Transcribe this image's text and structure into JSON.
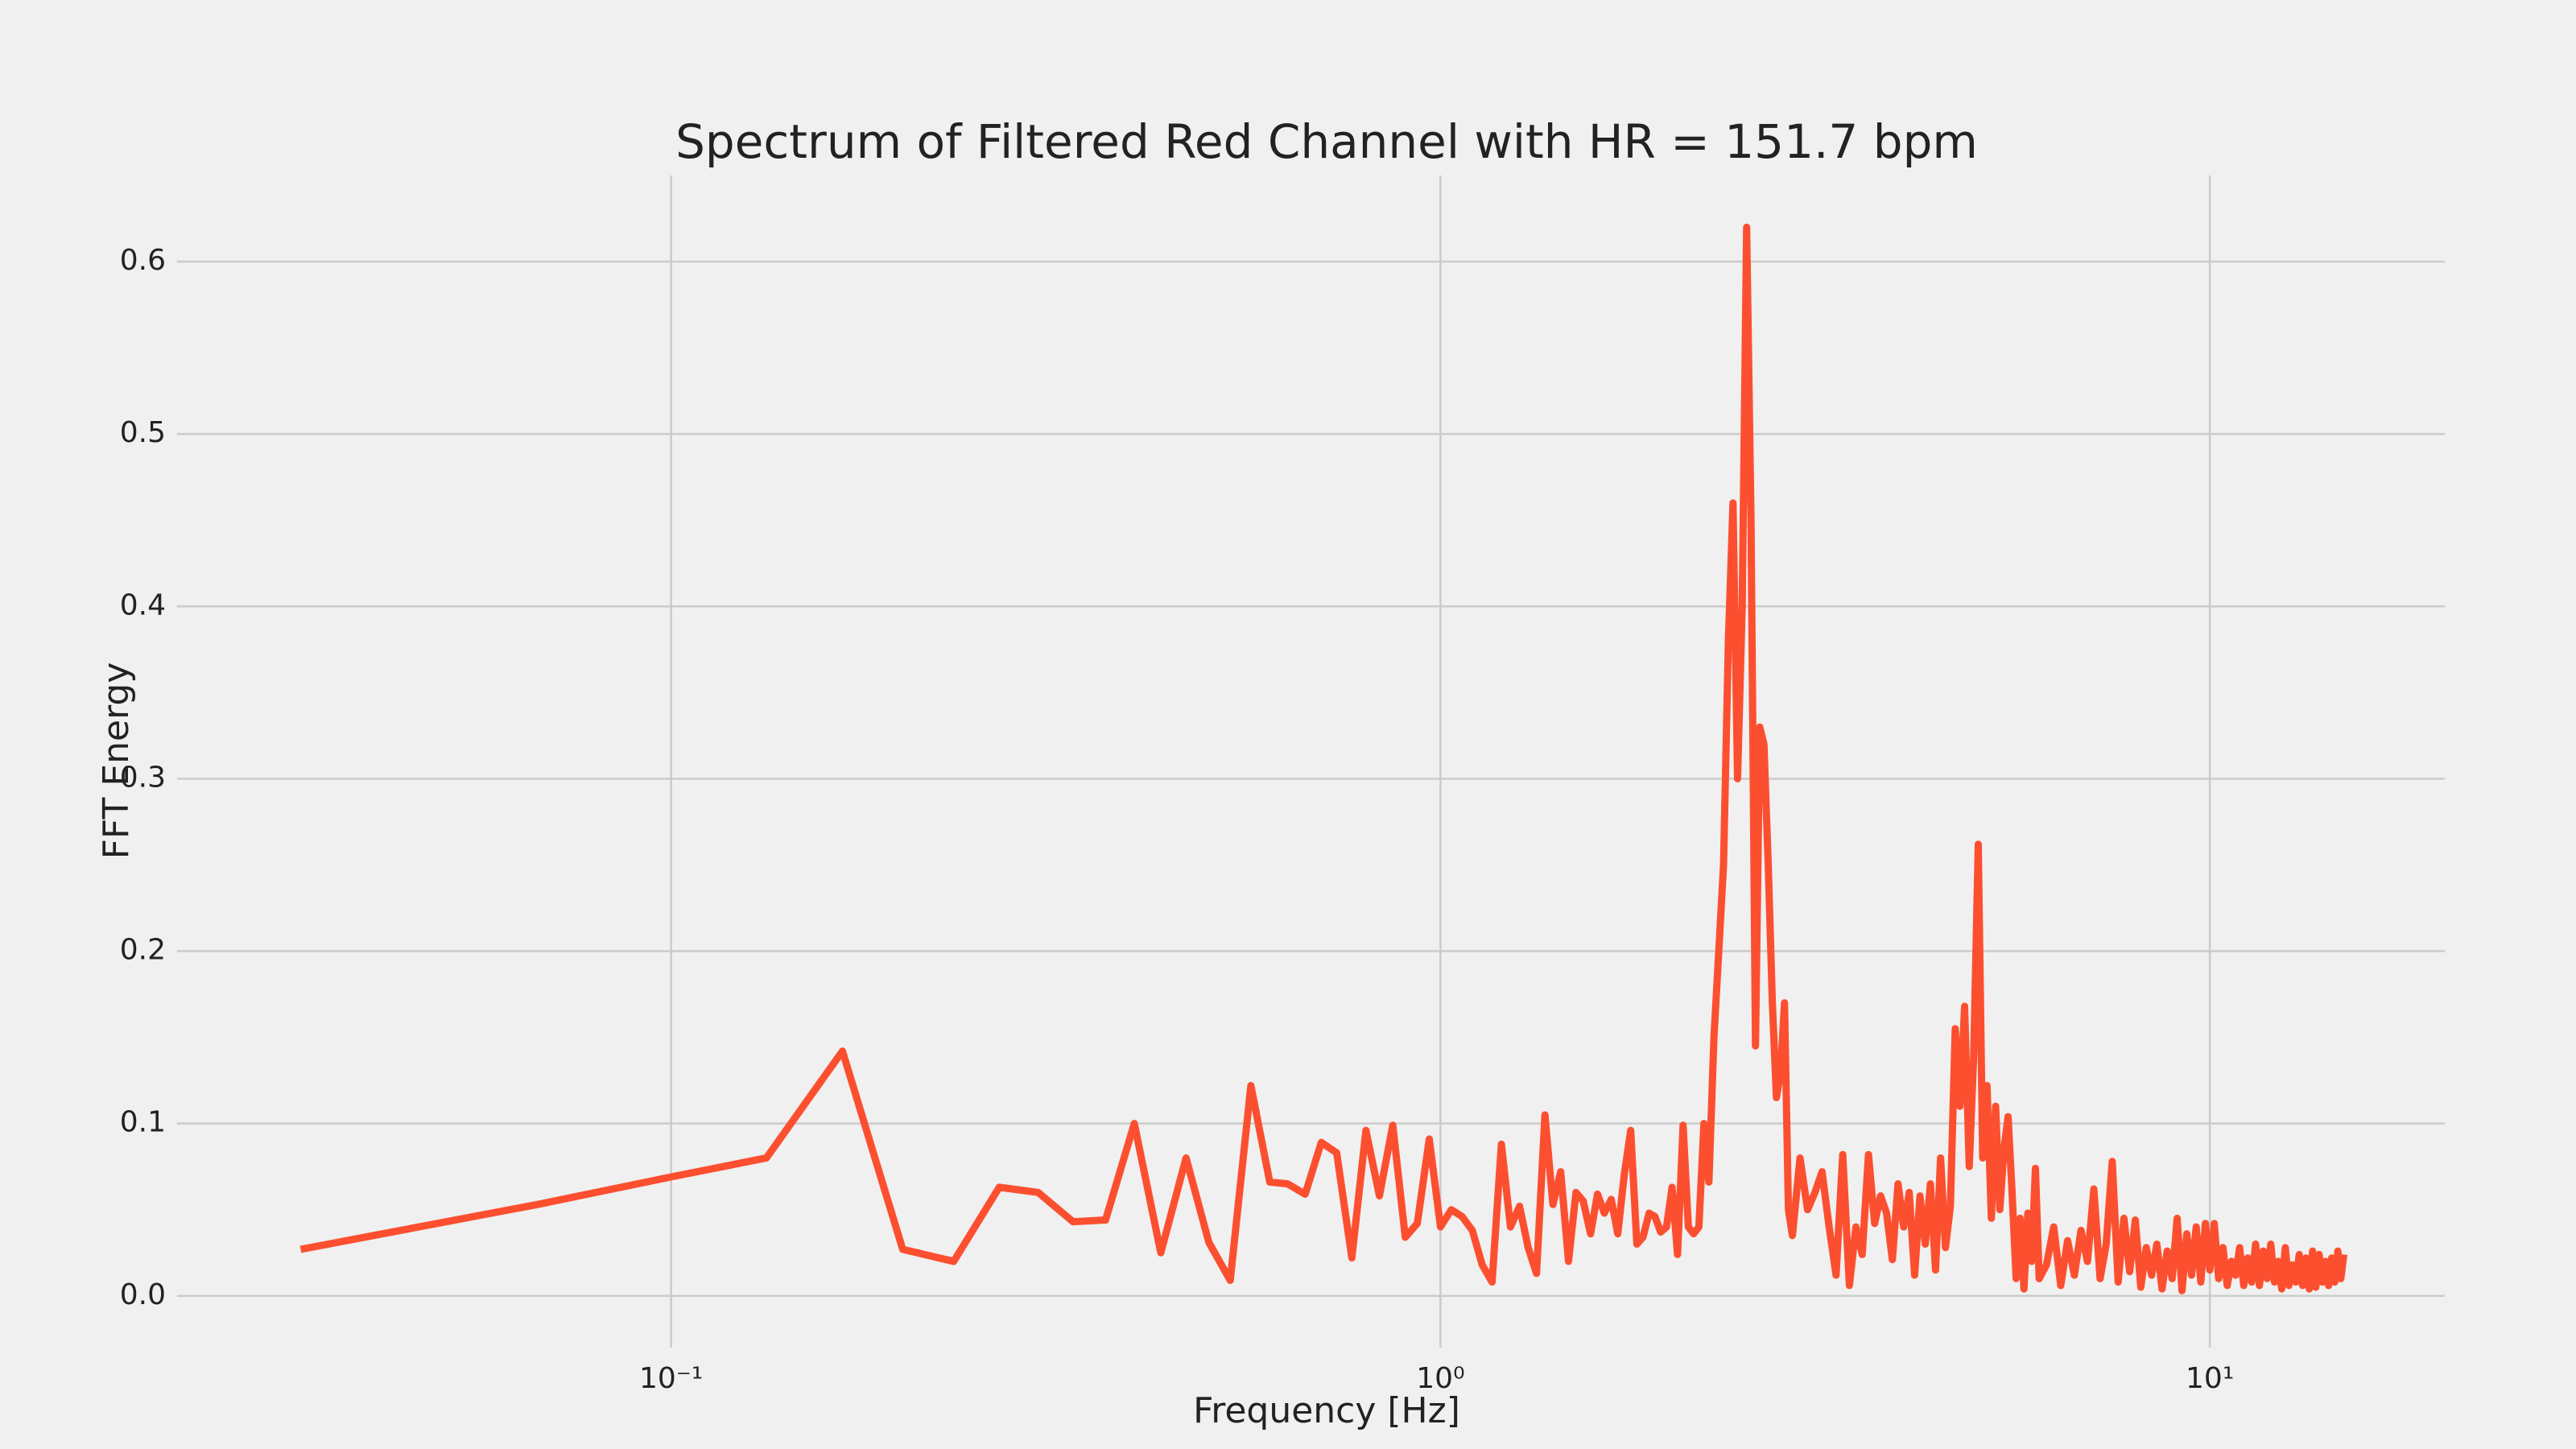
{
  "chart_data": {
    "type": "line",
    "title": "Spectrum of Filtered Red Channel with HR = 151.7 bpm",
    "x_label": "Frequency [Hz]",
    "y_label": "FFT Energy",
    "log_x": true,
    "grid": true,
    "color": "#fc4f30",
    "xlim": [
      0.0228,
      20.2
    ],
    "ylim": [
      -0.03,
      0.65
    ],
    "xticks": [
      {
        "value": 0.1,
        "label": "10⁻¹"
      },
      {
        "value": 1,
        "label": "10⁰"
      },
      {
        "value": 10,
        "label": "10¹"
      }
    ],
    "yticks": [
      {
        "value": 0,
        "label": "0.0"
      },
      0.1,
      0.2,
      0.3,
      0.4,
      0.5,
      0.6
    ],
    "x": [
      0.033,
      0.067,
      0.1,
      0.133,
      0.167,
      0.2,
      0.233,
      0.267,
      0.3,
      0.333,
      0.367,
      0.4,
      0.433,
      0.467,
      0.5,
      0.533,
      0.567,
      0.6,
      0.633,
      0.667,
      0.7,
      0.733,
      0.767,
      0.8,
      0.833,
      0.867,
      0.9,
      0.933,
      0.967,
      1,
      1.033,
      1.067,
      1.1,
      1.133,
      1.167,
      1.2,
      1.233,
      1.267,
      1.3,
      1.333,
      1.367,
      1.4,
      1.433,
      1.467,
      1.5,
      1.533,
      1.567,
      1.6,
      1.633,
      1.667,
      1.7,
      1.733,
      1.767,
      1.8,
      1.833,
      1.867,
      1.9,
      1.933,
      1.967,
      2,
      2.033,
      2.067,
      2.1,
      2.133,
      2.167,
      2.2,
      2.233,
      2.267,
      2.3,
      2.333,
      2.367,
      2.4,
      2.433,
      2.467,
      2.5,
      2.533,
      2.567,
      2.6,
      2.633,
      2.667,
      2.7,
      2.733,
      2.767,
      2.8,
      2.833,
      2.867,
      2.933,
      3,
      3.067,
      3.133,
      3.2,
      3.267,
      3.333,
      3.4,
      3.467,
      3.533,
      3.6,
      3.667,
      3.733,
      3.8,
      3.867,
      3.933,
      4,
      4.067,
      4.133,
      4.2,
      4.267,
      4.333,
      4.4,
      4.467,
      4.533,
      4.6,
      4.667,
      4.733,
      4.8,
      4.867,
      4.933,
      5,
      5.067,
      5.133,
      5.2,
      5.267,
      5.333,
      5.4,
      5.467,
      5.533,
      5.6,
      5.667,
      5.733,
      5.8,
      5.867,
      5.933,
      6,
      6.133,
      6.267,
      6.4,
      6.533,
      6.667,
      6.8,
      6.933,
      7.067,
      7.2,
      7.333,
      7.467,
      7.6,
      7.733,
      7.867,
      8,
      8.133,
      8.267,
      8.4,
      8.533,
      8.667,
      8.8,
      8.933,
      9.067,
      9.2,
      9.333,
      9.467,
      9.6,
      9.733,
      9.867,
      10,
      10.133,
      10.267,
      10.4,
      10.533,
      10.667,
      10.8,
      10.933,
      11.067,
      11.2,
      11.333,
      11.467,
      11.6,
      11.733,
      11.867,
      12,
      12.133,
      12.267,
      12.4,
      12.533,
      12.667,
      12.8,
      12.933,
      13.067,
      13.2,
      13.333,
      13.467,
      13.6,
      13.733,
      13.867,
      14,
      14.133,
      14.267,
      14.4,
      14.533,
      14.667,
      14.8,
      14.933
    ],
    "values": [
      0.027,
      0.053,
      0.069,
      0.08,
      0.142,
      0.027,
      0.02,
      0.063,
      0.06,
      0.043,
      0.044,
      0.1,
      0.025,
      0.08,
      0.031,
      0.009,
      0.122,
      0.066,
      0.065,
      0.059,
      0.089,
      0.083,
      0.022,
      0.096,
      0.058,
      0.099,
      0.034,
      0.042,
      0.091,
      0.04,
      0.05,
      0.046,
      0.038,
      0.018,
      0.008,
      0.088,
      0.04,
      0.052,
      0.028,
      0.013,
      0.105,
      0.053,
      0.072,
      0.02,
      0.06,
      0.055,
      0.036,
      0.059,
      0.048,
      0.056,
      0.036,
      0.07,
      0.096,
      0.03,
      0.034,
      0.048,
      0.046,
      0.037,
      0.04,
      0.063,
      0.024,
      0.099,
      0.04,
      0.036,
      0.04,
      0.1,
      0.066,
      0.15,
      0.2,
      0.25,
      0.38,
      0.46,
      0.3,
      0.4,
      0.62,
      0.45,
      0.145,
      0.33,
      0.32,
      0.25,
      0.17,
      0.115,
      0.13,
      0.17,
      0.05,
      0.035,
      0.08,
      0.05,
      0.06,
      0.072,
      0.04,
      0.012,
      0.082,
      0.006,
      0.04,
      0.024,
      0.082,
      0.042,
      0.058,
      0.048,
      0.021,
      0.065,
      0.04,
      0.06,
      0.012,
      0.058,
      0.03,
      0.065,
      0.015,
      0.08,
      0.028,
      0.052,
      0.155,
      0.11,
      0.168,
      0.075,
      0.14,
      0.262,
      0.08,
      0.122,
      0.045,
      0.11,
      0.05,
      0.085,
      0.104,
      0.06,
      0.01,
      0.045,
      0.004,
      0.048,
      0.02,
      0.074,
      0.01,
      0.018,
      0.04,
      0.006,
      0.032,
      0.012,
      0.038,
      0.02,
      0.062,
      0.01,
      0.03,
      0.078,
      0.008,
      0.045,
      0.014,
      0.044,
      0.005,
      0.028,
      0.012,
      0.03,
      0.004,
      0.026,
      0.01,
      0.045,
      0.003,
      0.036,
      0.012,
      0.04,
      0.008,
      0.042,
      0.015,
      0.042,
      0.01,
      0.028,
      0.006,
      0.02,
      0.012,
      0.028,
      0.006,
      0.022,
      0.008,
      0.03,
      0.006,
      0.026,
      0.01,
      0.03,
      0.008,
      0.02,
      0.004,
      0.028,
      0.006,
      0.018,
      0.008,
      0.024,
      0.006,
      0.022,
      0.004,
      0.026,
      0.005,
      0.024,
      0.008,
      0.02,
      0.006,
      0.022,
      0.008,
      0.026,
      0.01,
      0.024
    ]
  }
}
